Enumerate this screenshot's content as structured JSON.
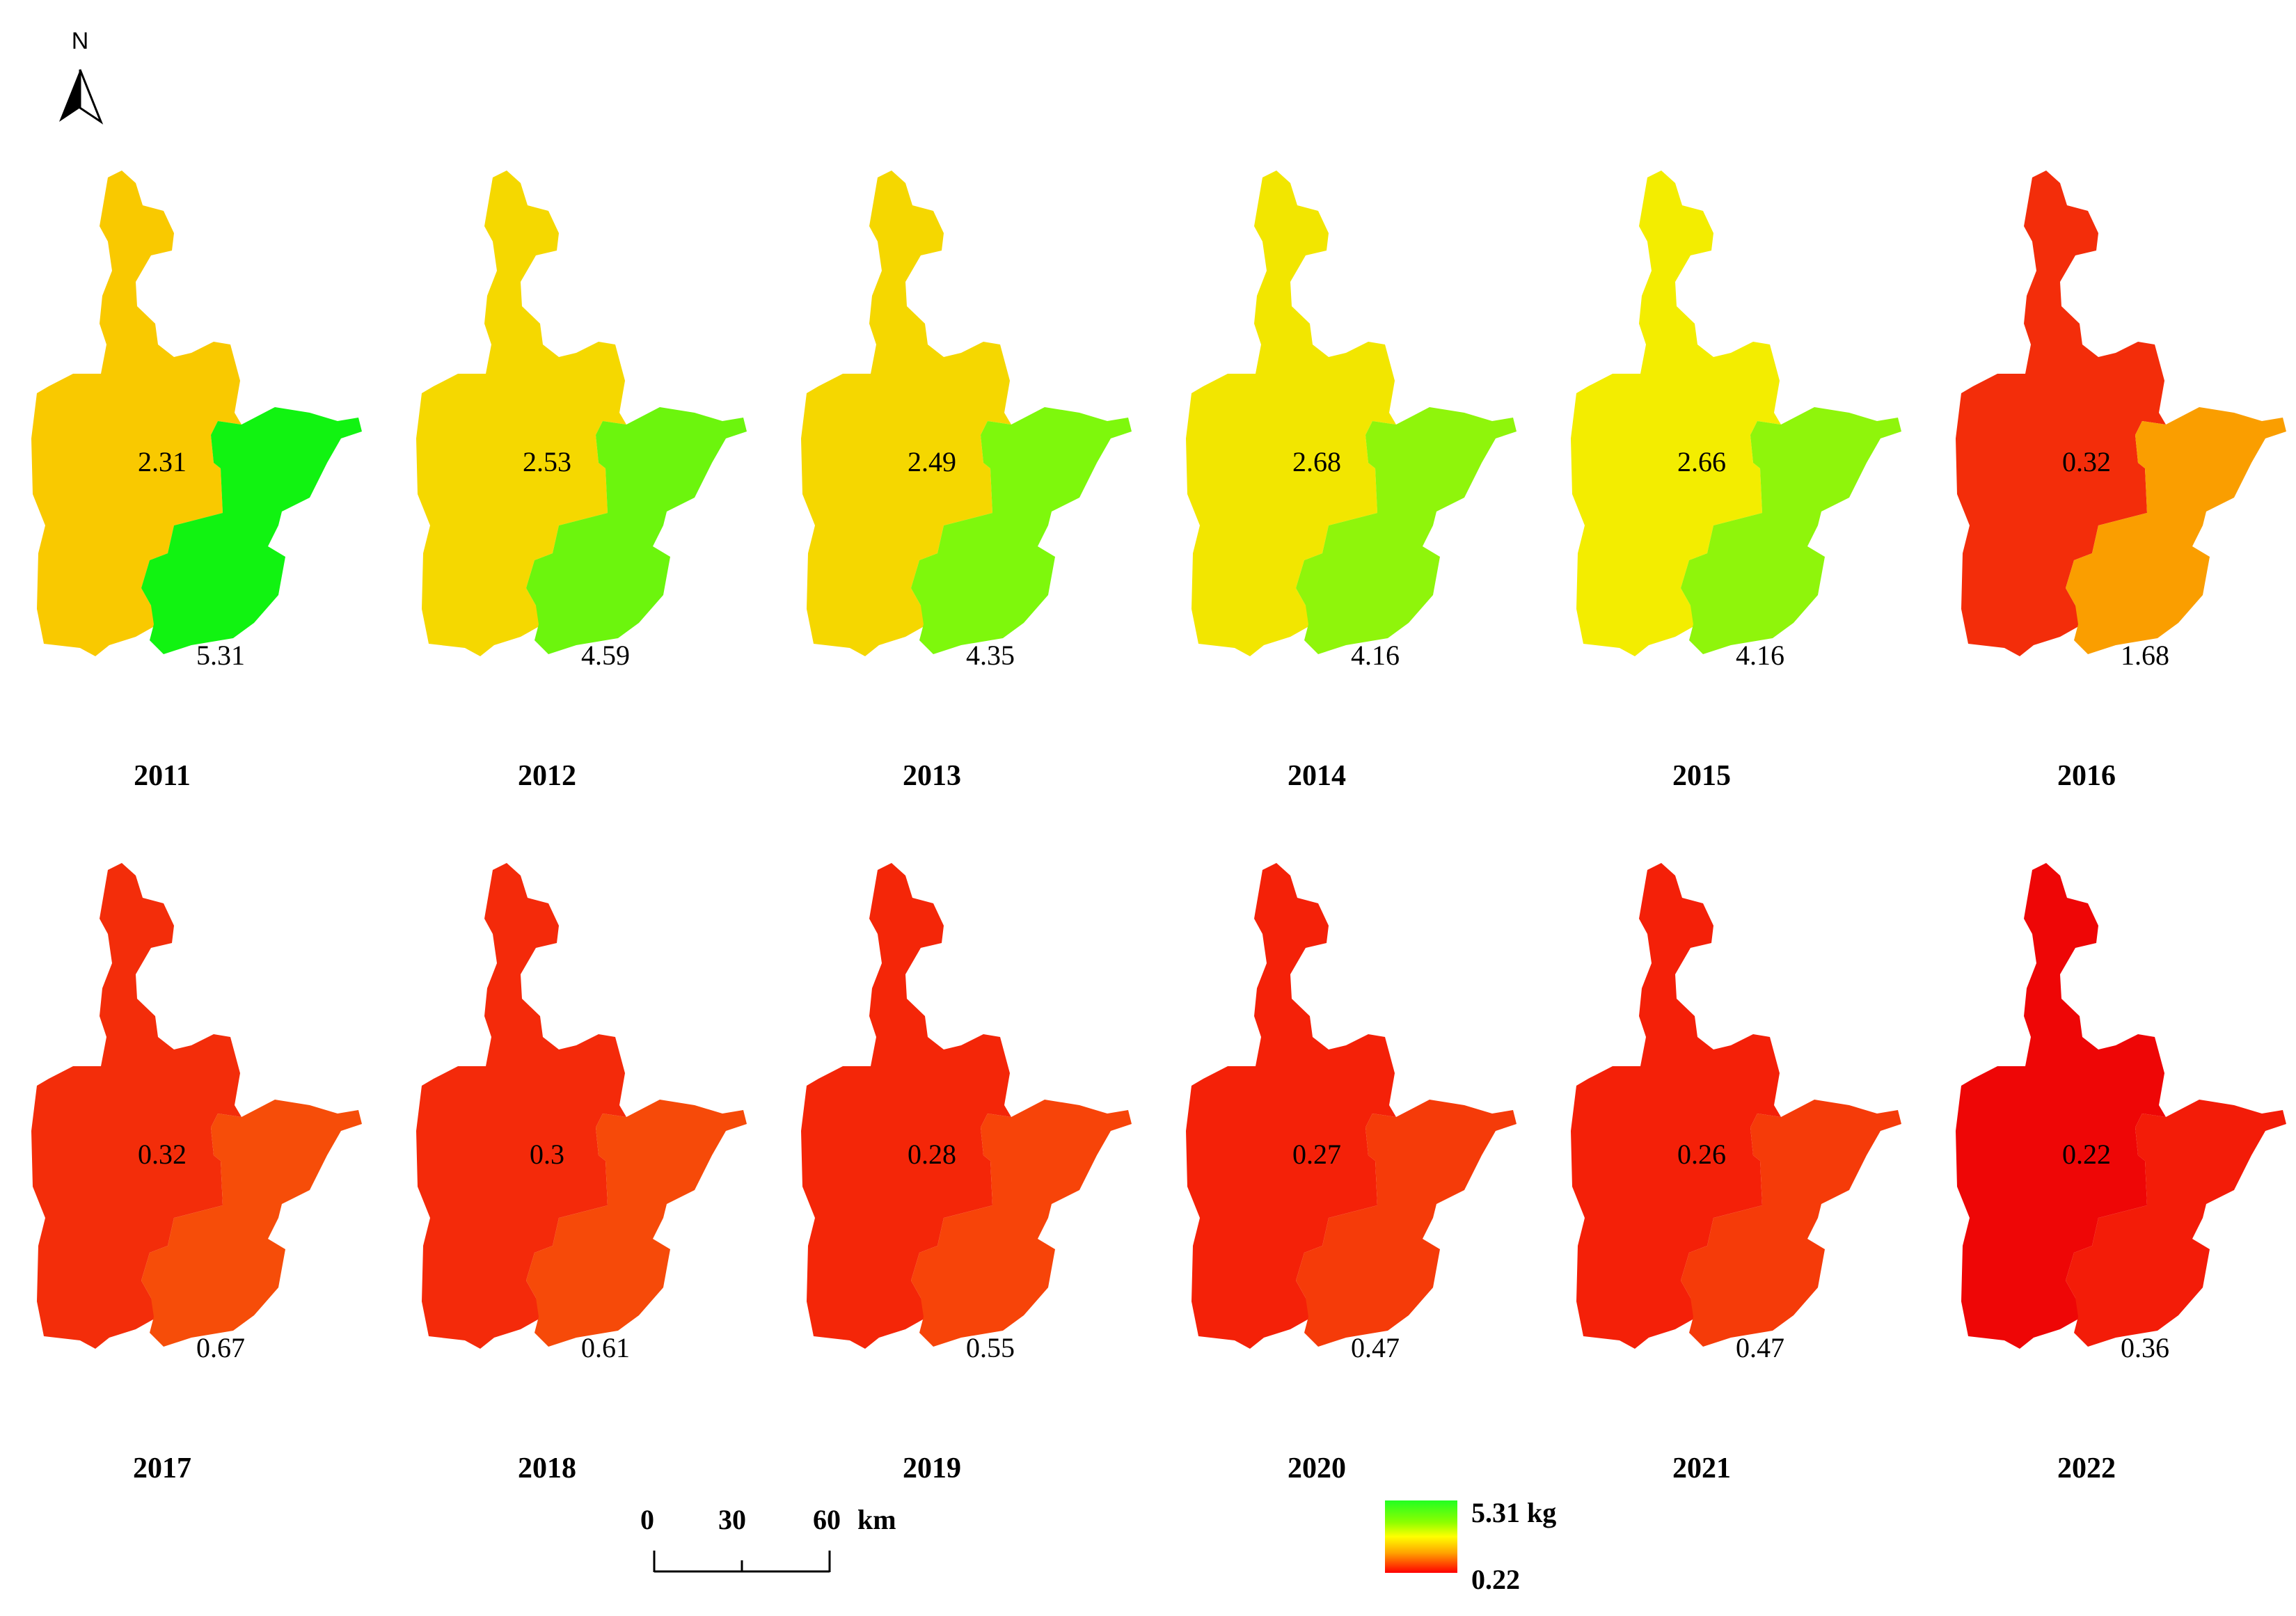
{
  "north_arrow": {
    "label": "N"
  },
  "colors": {
    "ramp_high": "#22ff22",
    "ramp_mid": "#ffff00",
    "ramp_low": "#ff0000"
  },
  "maps": [
    {
      "year": "2011",
      "main_value": "2.31",
      "coastal_value": "5.31",
      "main_color": "#f9c900",
      "coastal_color": "#11f311"
    },
    {
      "year": "2012",
      "main_value": "2.53",
      "coastal_value": "4.59",
      "main_color": "#f5d800",
      "coastal_color": "#6cf50d"
    },
    {
      "year": "2013",
      "main_value": "2.49",
      "coastal_value": "4.35",
      "main_color": "#f5d700",
      "coastal_color": "#7ef80c"
    },
    {
      "year": "2014",
      "main_value": "2.68",
      "coastal_value": "4.16",
      "main_color": "#f2e600",
      "coastal_color": "#8ff50b"
    },
    {
      "year": "2015",
      "main_value": "2.66",
      "coastal_value": "4.16",
      "main_color": "#f3ed00",
      "coastal_color": "#8ff50b"
    },
    {
      "year": "2016",
      "main_value": "0.32",
      "coastal_value": "1.68",
      "main_color": "#f32d0a",
      "coastal_color": "#fa9e00"
    },
    {
      "year": "2017",
      "main_value": "0.32",
      "coastal_value": "0.67",
      "main_color": "#f32d0a",
      "coastal_color": "#f64d09"
    },
    {
      "year": "2018",
      "main_value": "0.3",
      "coastal_value": "0.61",
      "main_color": "#f42a0a",
      "coastal_color": "#f64a09"
    },
    {
      "year": "2019",
      "main_value": "0.28",
      "coastal_value": "0.55",
      "main_color": "#f42608",
      "coastal_color": "#f74409"
    },
    {
      "year": "2020",
      "main_value": "0.27",
      "coastal_value": "0.47",
      "main_color": "#f42108",
      "coastal_color": "#f53b09"
    },
    {
      "year": "2021",
      "main_value": "0.26",
      "coastal_value": "0.47",
      "main_color": "#f42008",
      "coastal_color": "#f53b09"
    },
    {
      "year": "2022",
      "main_value": "0.22",
      "coastal_value": "0.36",
      "main_color": "#ee0606",
      "coastal_color": "#f31c08"
    }
  ],
  "scale_bar": {
    "labels": [
      "0",
      "30",
      "60"
    ],
    "unit": "km"
  },
  "legend": {
    "max_label": "5.31 kg",
    "min_label": "0.22"
  }
}
